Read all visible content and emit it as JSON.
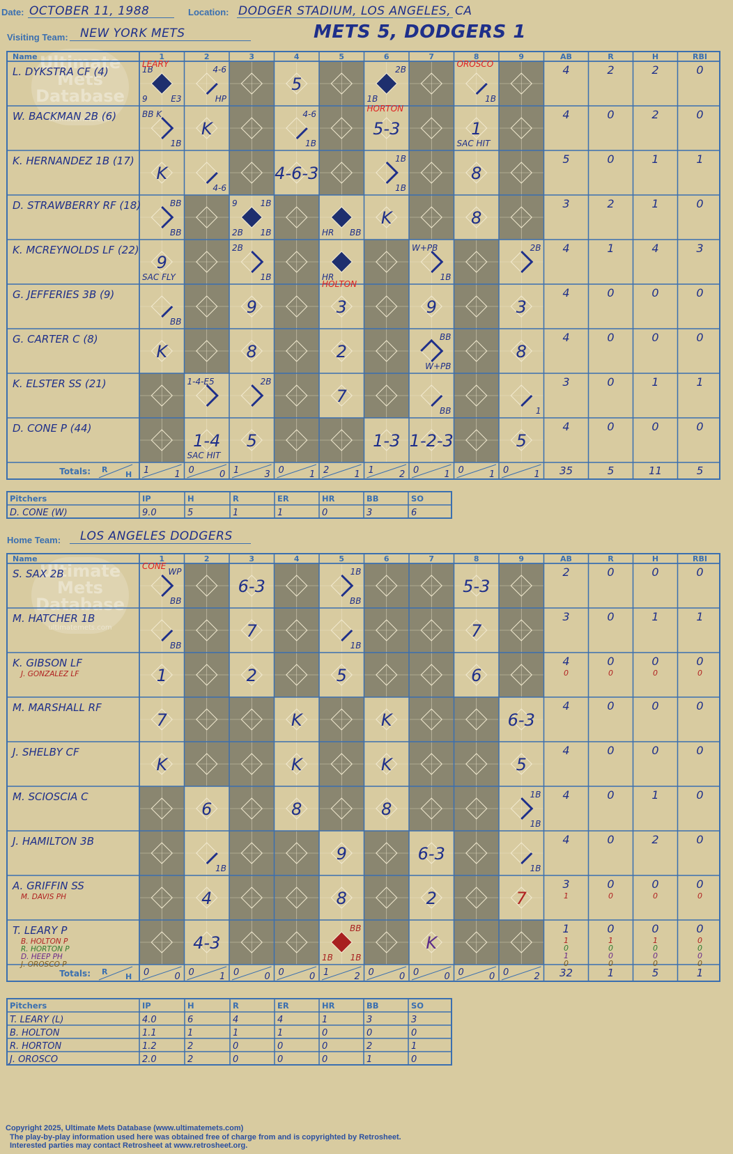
{
  "header": {
    "date_label": "Date:",
    "date": "OCTOBER 11, 1988",
    "location_label": "Location:",
    "location": "DODGER STADIUM, LOS ANGELES, CA",
    "visiting_label": "Visiting Team:",
    "visiting_team": "NEW YORK METS",
    "home_label": "Home Team:",
    "home_team": "LOS ANGELES DODGERS",
    "result": "METS 5, DODGERS 1"
  },
  "columns": {
    "name": "Name",
    "innings": [
      "1",
      "2",
      "3",
      "4",
      "5",
      "6",
      "7",
      "8",
      "9"
    ],
    "stats": [
      "AB",
      "R",
      "H",
      "RBI"
    ],
    "totals_label": "Totals:",
    "totals_r": "R",
    "totals_h": "H"
  },
  "watermark": {
    "lines": [
      "Ultimate",
      "Mets",
      "Database"
    ],
    "url": "ultimatemets.com"
  },
  "visitors": {
    "players": [
      {
        "name": "L. DYKSTRA CF (4)",
        "subs": [],
        "stats": [
          "4",
          "2",
          "2",
          "0"
        ],
        "stat_subs": [],
        "cells": [
          {
            "inn": 1,
            "scored": true,
            "tl": "1B",
            "bl": "9",
            "br": "E3",
            "top": "LEARY",
            "top_red": true
          },
          {
            "inn": 2,
            "path": "one",
            "tr": "4-6",
            "br": "HP"
          },
          {
            "inn": 4,
            "center": "5"
          },
          {
            "inn": 6,
            "scored": true,
            "tr": "2B",
            "bl": "1B"
          },
          {
            "inn": 8,
            "path": "one",
            "top": "OROSCO",
            "top_red": true,
            "br": "1B"
          }
        ]
      },
      {
        "name": "W. BACKMAN 2B (6)",
        "subs": [],
        "stats": [
          "4",
          "0",
          "2",
          "0"
        ],
        "stat_subs": [],
        "cells": [
          {
            "inn": 1,
            "path": "two",
            "tl": "BB K",
            "br": "1B"
          },
          {
            "inn": 2,
            "center": "K"
          },
          {
            "inn": 4,
            "path": "one",
            "tr": "4-6",
            "br": "1B"
          },
          {
            "inn": 6,
            "center": "5-3",
            "top": "HORTON",
            "top_red": true
          },
          {
            "inn": 8,
            "center": "1",
            "bl": "SAC HIT"
          }
        ]
      },
      {
        "name": "K. HERNANDEZ 1B (17)",
        "subs": [],
        "stats": [
          "5",
          "0",
          "1",
          "1"
        ],
        "stat_subs": [],
        "cells": [
          {
            "inn": 1,
            "center": "K"
          },
          {
            "inn": 2,
            "path": "one",
            "br": "4-6"
          },
          {
            "inn": 4,
            "center": "4-6-3"
          },
          {
            "inn": 6,
            "path": "two",
            "tr": "1B",
            "br": "1B"
          },
          {
            "inn": 8,
            "center": "8"
          }
        ]
      },
      {
        "name": "D. STRAWBERRY RF (18)",
        "subs": [],
        "stats": [
          "3",
          "2",
          "1",
          "0"
        ],
        "stat_subs": [],
        "cells": [
          {
            "inn": 1,
            "path": "two",
            "tr": "BB",
            "br": "BB"
          },
          {
            "inn": 3,
            "scored": true,
            "tl": "9",
            "tr": "1B",
            "bl": "2B",
            "br": "1B"
          },
          {
            "inn": 5,
            "scored": true,
            "bl": "HR",
            "br": "BB"
          },
          {
            "inn": 6,
            "center": "K"
          },
          {
            "inn": 8,
            "center": "8"
          }
        ]
      },
      {
        "name": "K. MCREYNOLDS LF (22)",
        "subs": [],
        "stats": [
          "4",
          "1",
          "4",
          "3"
        ],
        "stat_subs": [],
        "cells": [
          {
            "inn": 1,
            "center": "9",
            "bl": "SAC FLY"
          },
          {
            "inn": 3,
            "path": "two",
            "tl": "2B",
            "br": "1B"
          },
          {
            "inn": 5,
            "scored": true,
            "bl": "HR",
            "bottom": "HOLTON",
            "bottom_red": true
          },
          {
            "inn": 7,
            "path": "two",
            "tl": "W+PB",
            "br": "1B"
          },
          {
            "inn": 9,
            "path": "two",
            "tr": "2B"
          }
        ]
      },
      {
        "name": "G. JEFFERIES 3B (9)",
        "subs": [],
        "stats": [
          "4",
          "0",
          "0",
          "0"
        ],
        "stat_subs": [],
        "cells": [
          {
            "inn": 1,
            "path": "one",
            "br": "BB"
          },
          {
            "inn": 3,
            "center": "9"
          },
          {
            "inn": 5,
            "center": "3"
          },
          {
            "inn": 7,
            "center": "9"
          },
          {
            "inn": 9,
            "center": "3"
          }
        ]
      },
      {
        "name": "G. CARTER C (8)",
        "subs": [],
        "stats": [
          "4",
          "0",
          "0",
          "0"
        ],
        "stat_subs": [],
        "cells": [
          {
            "inn": 1,
            "center": "K"
          },
          {
            "inn": 3,
            "center": "8"
          },
          {
            "inn": 5,
            "center": "2"
          },
          {
            "inn": 7,
            "path": "three",
            "tr": "BB",
            "br": "W+PB"
          },
          {
            "inn": 9,
            "center": "8"
          }
        ]
      },
      {
        "name": "K. ELSTER SS (21)",
        "subs": [],
        "stats": [
          "3",
          "0",
          "1",
          "1"
        ],
        "stat_subs": [],
        "cells": [
          {
            "inn": 2,
            "path": "two",
            "tl": "1-4-E5"
          },
          {
            "inn": 3,
            "path": "two",
            "tr": "2B"
          },
          {
            "inn": 5,
            "center": "7"
          },
          {
            "inn": 7,
            "path": "one",
            "br": "BB"
          },
          {
            "inn": 9,
            "path": "one",
            "br": "1"
          }
        ]
      },
      {
        "name": "D. CONE P (44)",
        "subs": [],
        "stats": [
          "4",
          "0",
          "0",
          "0"
        ],
        "stat_subs": [],
        "cells": [
          {
            "inn": 2,
            "center": "1-4",
            "bl": "SAC HIT"
          },
          {
            "inn": 3,
            "center": "5"
          },
          {
            "inn": 6,
            "center": "1-3"
          },
          {
            "inn": 7,
            "center": "1-2-3"
          },
          {
            "inn": 9,
            "center": "5"
          }
        ]
      }
    ],
    "gray": [
      [
        3,
        5,
        7,
        9
      ],
      [
        3,
        5,
        7,
        9
      ],
      [
        3,
        5,
        7,
        9
      ],
      [
        2,
        4,
        7,
        9
      ],
      [
        2,
        4,
        6,
        8
      ],
      [
        2,
        4,
        6,
        8
      ],
      [
        2,
        4,
        6,
        8
      ],
      [
        1,
        4,
        6,
        8
      ],
      [
        1,
        4,
        5,
        8
      ]
    ],
    "totals": [
      [
        "1",
        "1"
      ],
      [
        "0",
        "0"
      ],
      [
        "1",
        "3"
      ],
      [
        "0",
        "1"
      ],
      [
        "2",
        "1"
      ],
      [
        "1",
        "2"
      ],
      [
        "0",
        "1"
      ],
      [
        "0",
        "1"
      ],
      [
        "0",
        "1"
      ]
    ],
    "total_stats": [
      "35",
      "5",
      "11",
      "5"
    ]
  },
  "visitor_pitchers": {
    "header": [
      "Pitchers",
      "IP",
      "H",
      "R",
      "ER",
      "HR",
      "BB",
      "SO"
    ],
    "rows": [
      [
        "D. CONE (W)",
        "9.0",
        "5",
        "1",
        "1",
        "0",
        "3",
        "6"
      ]
    ]
  },
  "home": {
    "players": [
      {
        "name": "S. SAX 2B",
        "subs": [],
        "stats": [
          "2",
          "0",
          "0",
          "0"
        ],
        "stat_subs": [],
        "cells": [
          {
            "inn": 1,
            "path": "two",
            "top": "CONE",
            "top_red": true,
            "tr": "WP",
            "br": "BB"
          },
          {
            "inn": 3,
            "center": "6-3"
          },
          {
            "inn": 5,
            "path": "two",
            "tr": "1B",
            "br": "BB"
          },
          {
            "inn": 8,
            "center": "5-3"
          }
        ]
      },
      {
        "name": "M. HATCHER 1B",
        "subs": [],
        "stats": [
          "3",
          "0",
          "1",
          "1"
        ],
        "stat_subs": [],
        "cells": [
          {
            "inn": 1,
            "path": "one",
            "br": "BB"
          },
          {
            "inn": 3,
            "center": "7"
          },
          {
            "inn": 5,
            "path": "one",
            "br": "1B"
          },
          {
            "inn": 8,
            "center": "7"
          }
        ]
      },
      {
        "name": "K. GIBSON LF",
        "subs": [
          {
            "name": "J. GONZALEZ LF",
            "color": "#b02020"
          }
        ],
        "stats": [
          "4",
          "0",
          "0",
          "0"
        ],
        "stat_subs": [
          {
            "vals": [
              "0",
              "0",
              "0",
              "0"
            ],
            "color": "#b02020"
          }
        ],
        "cells": [
          {
            "inn": 1,
            "center": "1"
          },
          {
            "inn": 3,
            "center": "2"
          },
          {
            "inn": 5,
            "center": "5"
          },
          {
            "inn": 8,
            "center": "6"
          }
        ]
      },
      {
        "name": "M. MARSHALL RF",
        "subs": [],
        "stats": [
          "4",
          "0",
          "0",
          "0"
        ],
        "stat_subs": [],
        "cells": [
          {
            "inn": 1,
            "center": "7"
          },
          {
            "inn": 4,
            "center": "K"
          },
          {
            "inn": 6,
            "center": "K"
          },
          {
            "inn": 9,
            "center": "6-3"
          }
        ]
      },
      {
        "name": "J. SHELBY CF",
        "subs": [],
        "stats": [
          "4",
          "0",
          "0",
          "0"
        ],
        "stat_subs": [],
        "cells": [
          {
            "inn": 1,
            "center": "K"
          },
          {
            "inn": 4,
            "center": "K"
          },
          {
            "inn": 6,
            "center": "K"
          },
          {
            "inn": 9,
            "center": "5"
          }
        ]
      },
      {
        "name": "M. SCIOSCIA C",
        "subs": [],
        "stats": [
          "4",
          "0",
          "1",
          "0"
        ],
        "stat_subs": [],
        "cells": [
          {
            "inn": 2,
            "center": "6"
          },
          {
            "inn": 4,
            "center": "8"
          },
          {
            "inn": 6,
            "center": "8"
          },
          {
            "inn": 9,
            "path": "two",
            "tr": "1B",
            "br": "1B"
          }
        ]
      },
      {
        "name": "J. HAMILTON 3B",
        "subs": [],
        "stats": [
          "4",
          "0",
          "2",
          "0"
        ],
        "stat_subs": [],
        "cells": [
          {
            "inn": 2,
            "path": "one",
            "br": "1B"
          },
          {
            "inn": 5,
            "center": "9"
          },
          {
            "inn": 7,
            "center": "6-3"
          },
          {
            "inn": 9,
            "path": "one",
            "br": "1B"
          }
        ]
      },
      {
        "name": "A. GRIFFIN SS",
        "subs": [
          {
            "name": "M. DAVIS PH",
            "color": "#b02020"
          }
        ],
        "stats": [
          "3",
          "0",
          "0",
          "0"
        ],
        "stat_subs": [
          {
            "vals": [
              "1",
              "0",
              "0",
              "0"
            ],
            "color": "#b02020"
          }
        ],
        "cells": [
          {
            "inn": 2,
            "center": "4"
          },
          {
            "inn": 5,
            "center": "8"
          },
          {
            "inn": 7,
            "center": "2"
          },
          {
            "inn": 9,
            "center": "7",
            "center_red": true
          }
        ]
      },
      {
        "name": "T. LEARY P",
        "subs": [
          {
            "name": "B. HOLTON P",
            "color": "#b02020"
          },
          {
            "name": "R. HORTON P",
            "color": "#2f7a2f"
          },
          {
            "name": "D. HEEP PH",
            "color": "#6a2a8a"
          },
          {
            "name": "J. OROSCO P",
            "color": "#7a5a20"
          }
        ],
        "stats": [
          "1",
          "0",
          "0",
          "0"
        ],
        "stat_subs": [
          {
            "vals": [
              "1",
              "1",
              "1",
              "0"
            ],
            "color": "#b02020"
          },
          {
            "vals": [
              "0",
              "0",
              "0",
              "0"
            ],
            "color": "#2f7a2f"
          },
          {
            "vals": [
              "1",
              "0",
              "0",
              "0"
            ],
            "color": "#6a2a8a"
          },
          {
            "vals": [
              "0",
              "0",
              "0",
              "0"
            ],
            "color": "#7a5a20"
          }
        ],
        "cells": [
          {
            "inn": 2,
            "center": "4-3"
          },
          {
            "inn": 5,
            "scored": true,
            "scored_red": true,
            "tr": "BB",
            "bl": "1B",
            "br": "1B",
            "red_labels": true
          },
          {
            "inn": 7,
            "center": "K",
            "center_purple": true
          }
        ]
      }
    ],
    "gray": [
      [
        2,
        4,
        6,
        7,
        9
      ],
      [
        2,
        4,
        6,
        7,
        9
      ],
      [
        2,
        4,
        6,
        7,
        9
      ],
      [
        2,
        3,
        5,
        7,
        8
      ],
      [
        2,
        3,
        5,
        7,
        8
      ],
      [
        1,
        3,
        5,
        7,
        8
      ],
      [
        1,
        3,
        4,
        6,
        8
      ],
      [
        1,
        3,
        4,
        6,
        8
      ],
      [
        1,
        3,
        4,
        6,
        8,
        9
      ]
    ],
    "totals": [
      [
        "0",
        "0"
      ],
      [
        "0",
        "1"
      ],
      [
        "0",
        "0"
      ],
      [
        "0",
        "0"
      ],
      [
        "1",
        "2"
      ],
      [
        "0",
        "0"
      ],
      [
        "0",
        "0"
      ],
      [
        "0",
        "0"
      ],
      [
        "0",
        "2"
      ]
    ],
    "total_stats": [
      "32",
      "1",
      "5",
      "1"
    ]
  },
  "home_pitchers": {
    "header": [
      "Pitchers",
      "IP",
      "H",
      "R",
      "ER",
      "HR",
      "BB",
      "SO"
    ],
    "rows": [
      [
        "T. LEARY (L)",
        "4.0",
        "6",
        "4",
        "4",
        "1",
        "3",
        "3"
      ],
      [
        "B. HOLTON",
        "1.1",
        "1",
        "1",
        "1",
        "0",
        "0",
        "0"
      ],
      [
        "R. HORTON",
        "1.2",
        "2",
        "0",
        "0",
        "0",
        "2",
        "1"
      ],
      [
        "J. OROSCO",
        "2.0",
        "2",
        "0",
        "0",
        "0",
        "1",
        "0"
      ]
    ]
  },
  "footer": [
    "Copyright 2025, Ultimate Mets Database (www.ultimatemets.com)",
    "The play-by-play information used here was obtained free of charge from and is copyrighted by Retrosheet.",
    "Interested parties may contact Retrosheet at www.retrosheet.org."
  ],
  "colors": {
    "background": "#d8cba0",
    "grid": "#3a6fb0",
    "gray_cell": "#8a8670",
    "ink": "#1e2f8a",
    "red": "#e02020",
    "diamond": "#1e2f8a"
  }
}
